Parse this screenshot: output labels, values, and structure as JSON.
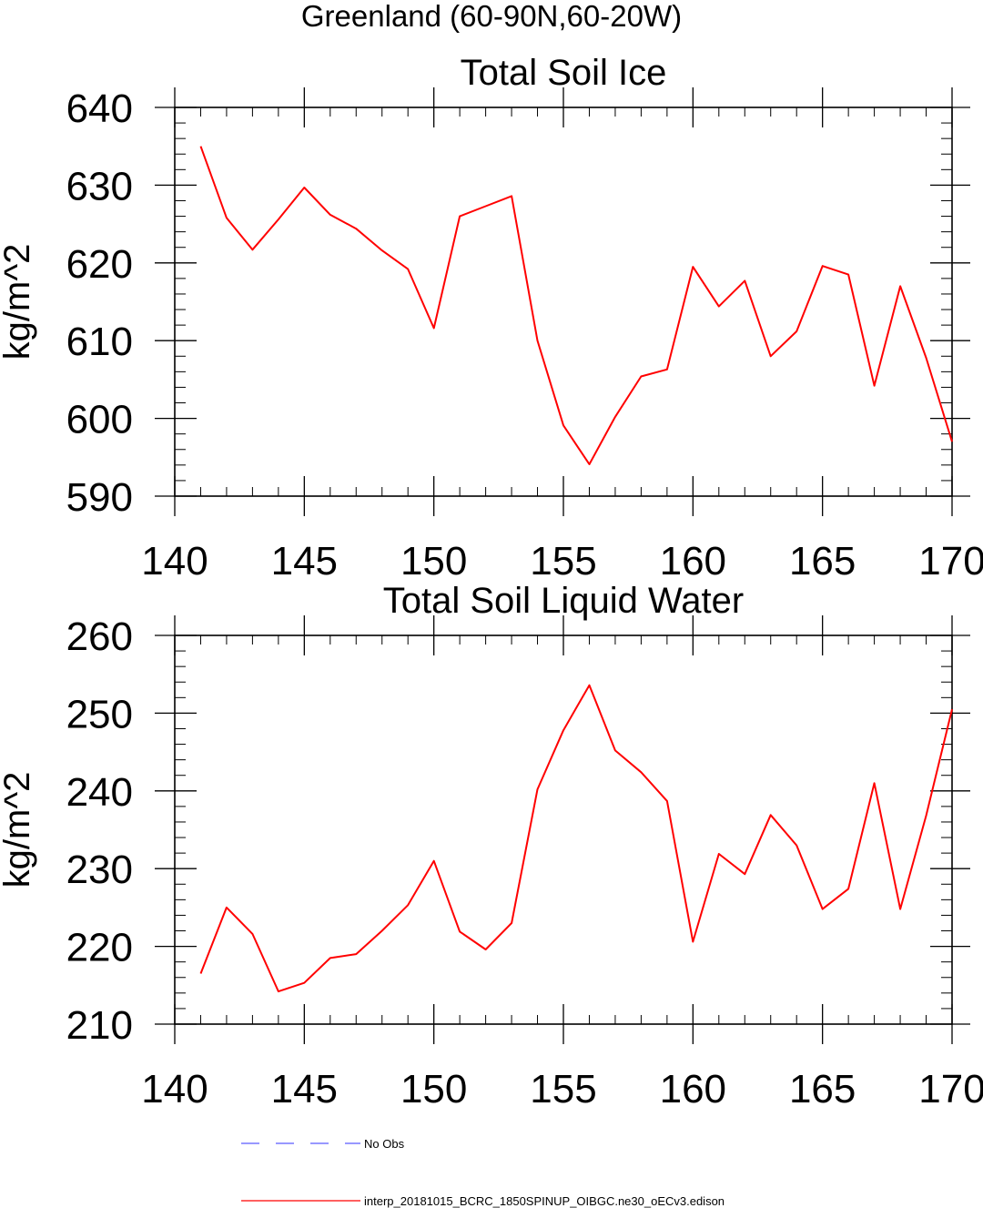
{
  "figure": {
    "suptitle": "Greenland (60-90N,60-20W)"
  },
  "colors": {
    "model": "#ff0000",
    "obs": "#5a5aff",
    "axes": "#000000"
  },
  "chart_data": [
    {
      "type": "line",
      "title": "Total Soil Ice",
      "xlabel": "",
      "ylabel": "kg/m^2",
      "xlim": [
        140,
        170
      ],
      "ylim": [
        590,
        640
      ],
      "xticks": [
        140,
        145,
        150,
        155,
        160,
        165,
        170
      ],
      "yticks": [
        590,
        600,
        610,
        620,
        630,
        640
      ],
      "xtick_labels": [
        "140",
        "145",
        "150",
        "155",
        "160",
        "165",
        "170"
      ],
      "ytick_labels": [
        "590",
        "600",
        "610",
        "620",
        "630",
        "640"
      ],
      "x": [
        141,
        142,
        143,
        144,
        145,
        146,
        147,
        148,
        149,
        150,
        151,
        152,
        153,
        154,
        155,
        156,
        157,
        158,
        159,
        160,
        161,
        162,
        163,
        164,
        165,
        166,
        167,
        168,
        169,
        170
      ],
      "series": [
        {
          "name": "interp_20181015_BCRC_1850SPINUP_OIBGC.ne30_oECv3.edison",
          "values": [
            635,
            625.8,
            621.7,
            625.6,
            629.7,
            626.2,
            624.4,
            621.6,
            619.2,
            611.6,
            626,
            627.3,
            628.6,
            610,
            599.1,
            594.1,
            600.2,
            605.4,
            606.3,
            619.5,
            614.4,
            617.7,
            608,
            611.2,
            619.6,
            618.5,
            604.2,
            617,
            607.8,
            597
          ]
        }
      ]
    },
    {
      "type": "line",
      "title": "Total Soil Liquid Water",
      "xlabel": "",
      "ylabel": "kg/m^2",
      "xlim": [
        140,
        170
      ],
      "ylim": [
        210,
        260
      ],
      "xticks": [
        140,
        145,
        150,
        155,
        160,
        165,
        170
      ],
      "yticks": [
        210,
        220,
        230,
        240,
        250,
        260
      ],
      "xtick_labels": [
        "140",
        "145",
        "150",
        "155",
        "160",
        "165",
        "170"
      ],
      "ytick_labels": [
        "210",
        "220",
        "230",
        "240",
        "250",
        "260"
      ],
      "x": [
        141,
        142,
        143,
        144,
        145,
        146,
        147,
        148,
        149,
        150,
        151,
        152,
        153,
        154,
        155,
        156,
        157,
        158,
        159,
        160,
        161,
        162,
        163,
        164,
        165,
        166,
        167,
        168,
        169,
        170
      ],
      "series": [
        {
          "name": "interp_20181015_BCRC_1850SPINUP_OIBGC.ne30_oECv3.edison",
          "values": [
            216.5,
            225,
            221.6,
            214.2,
            215.3,
            218.5,
            219,
            222,
            225.3,
            231,
            221.9,
            219.6,
            223,
            240.2,
            247.8,
            253.6,
            245.2,
            242.4,
            238.7,
            220.6,
            231.9,
            229.3,
            236.9,
            233,
            224.8,
            227.4,
            241,
            224.8,
            236.8,
            250.5
          ]
        }
      ]
    }
  ],
  "legend": [
    {
      "label": "No Obs",
      "style": "dashed",
      "color": "#5a5aff"
    },
    {
      "label": "interp_20181015_BCRC_1850SPINUP_OIBGC.ne30_oECv3.edison",
      "style": "solid",
      "color": "#ff0000"
    }
  ]
}
